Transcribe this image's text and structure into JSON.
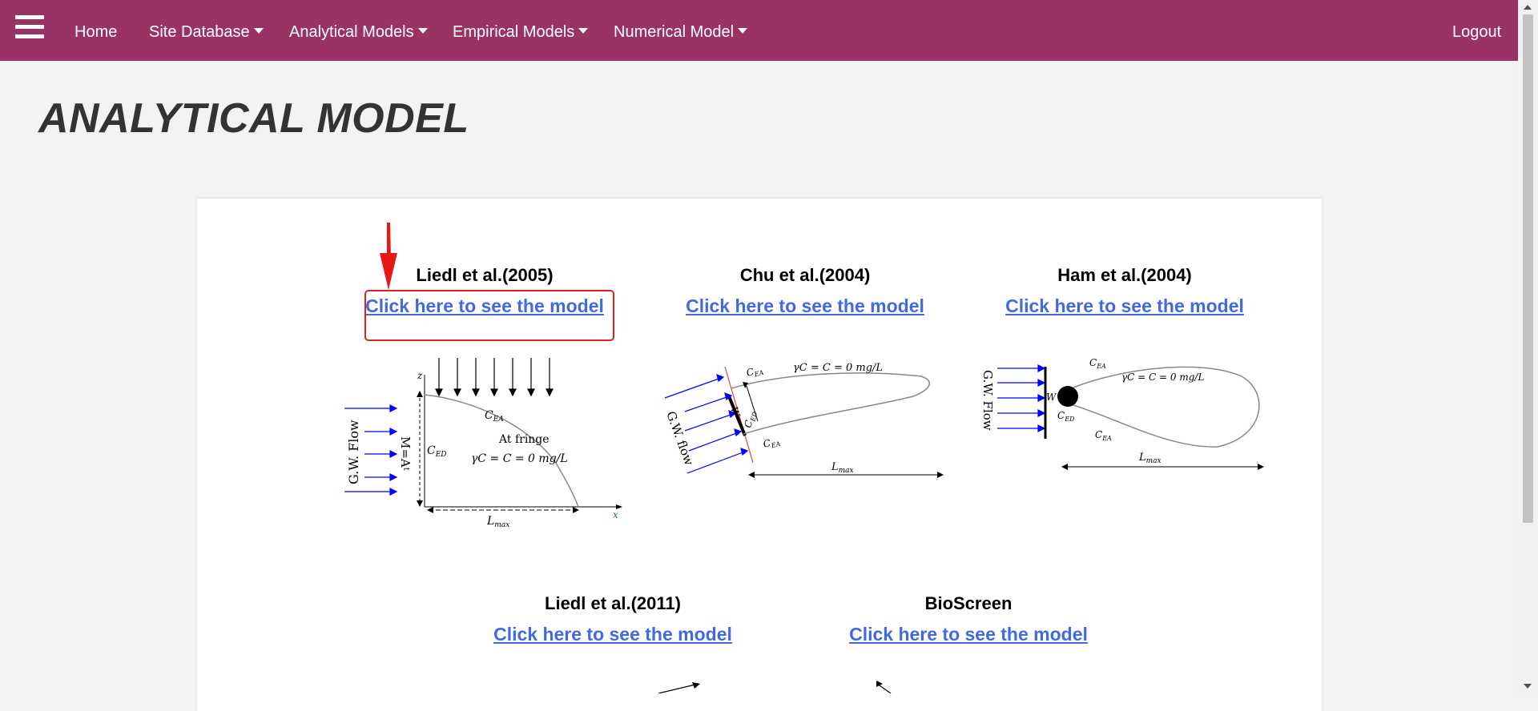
{
  "nav": {
    "home": "Home",
    "site_database": "Site Database",
    "analytical_models": "Analytical Models",
    "empirical_models": "Empirical Models",
    "numerical_model": "Numerical Model",
    "logout": "Logout"
  },
  "page_title": "ANALYTICAL MODEL",
  "link_text": "Click here to see the model",
  "models": [
    {
      "title": "Liedl et al.(2005)",
      "link": "Click here to see the model"
    },
    {
      "title": "Chu et al.(2004)",
      "link": "Click here to see the model"
    },
    {
      "title": "Ham et al.(2004)",
      "link": "Click here to see the model"
    },
    {
      "title": "Liedl et al.(2011)",
      "link": "Click here to see the model"
    },
    {
      "title": "BioScreen",
      "link": "Click here to see the model"
    }
  ],
  "diagrams": {
    "liedl2005": {
      "gw_flow": "G.W. Flow",
      "m_label": "M=A",
      "m_sub": "t",
      "ced": "C",
      "ced_sub": "ED",
      "cea": "C",
      "cea_sub": "EA",
      "fringe": "At fringe",
      "equation": "γC  = C  = 0 mg/L",
      "lmax": "L",
      "lmax_sub": "max",
      "z": "z",
      "x": "x"
    },
    "chu2004": {
      "gw_flow": "G.W. flow",
      "w": "W",
      "cea": "C",
      "cea_sub": "EA",
      "ced": "C",
      "ced_sub": "ED",
      "equation": "γC  = C  = 0 mg/L",
      "lmax": "L",
      "lmax_sub": "max"
    },
    "ham2004": {
      "gw_flow": "G.W. Flow",
      "w": "W",
      "cea": "C",
      "cea_sub": "EA",
      "ced": "C",
      "ced_sub": "ED",
      "equation": "γC  = C  = 0 mg/L",
      "lmax": "L",
      "lmax_sub": "max"
    }
  },
  "colors": {
    "navbar": "#993366",
    "link": "#4169e1",
    "highlight": "#e02020",
    "flow_arrow": "#0000ff"
  },
  "icons": {
    "menu": "hamburger-menu-icon",
    "caret": "caret-down-icon",
    "pointer": "red-arrow-icon"
  }
}
